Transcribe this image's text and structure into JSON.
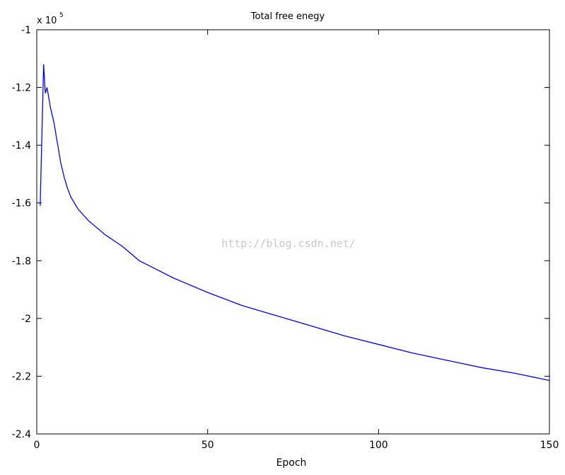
{
  "chart_data": {
    "type": "line",
    "title": "Total free enegy",
    "xlabel": "Epoch",
    "y_scale_base": "x 10",
    "y_scale_exponent": "5",
    "watermark": "http://blog.csdn.net/",
    "x": [
      1,
      2,
      2.5,
      3,
      4,
      5,
      6,
      7,
      8,
      9,
      10,
      12,
      15,
      20,
      25,
      30,
      40,
      50,
      60,
      70,
      80,
      90,
      100,
      110,
      120,
      130,
      140,
      150
    ],
    "series": [
      {
        "color": "#0000ff",
        "values": [
          -1.61,
          -1.12,
          -1.22,
          -1.2,
          -1.27,
          -1.32,
          -1.39,
          -1.46,
          -1.51,
          -1.55,
          -1.58,
          -1.62,
          -1.66,
          -1.71,
          -1.75,
          -1.8,
          -1.86,
          -1.91,
          -1.955,
          -1.99,
          -2.025,
          -2.06,
          -2.09,
          -2.12,
          -2.145,
          -2.17,
          -2.19,
          -2.215
        ]
      }
    ],
    "xlim": [
      0,
      150
    ],
    "xticks": [
      0,
      50,
      100,
      150
    ],
    "ylim": [
      -2.4,
      -1
    ],
    "yticks": [
      -1,
      -1.2,
      -1.4,
      -1.6,
      -1.8,
      -2,
      -2.2,
      -2.4
    ],
    "grid": false
  }
}
